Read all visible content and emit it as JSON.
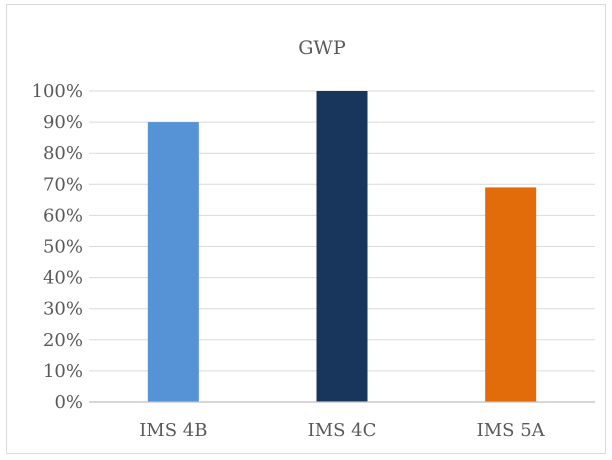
{
  "chart_data": {
    "type": "bar",
    "title": "GWP",
    "categories": [
      "IMS 4B",
      "IMS 4C",
      "IMS 5A"
    ],
    "values": [
      0.9,
      1.0,
      0.69
    ],
    "colors": [
      "#5592d6",
      "#18365c",
      "#e36c0a"
    ],
    "ylim": [
      0,
      1
    ],
    "yticks": [
      "0%",
      "10%",
      "20%",
      "30%",
      "40%",
      "50%",
      "60%",
      "70%",
      "80%",
      "90%",
      "100%"
    ],
    "xlabel": "",
    "ylabel": "",
    "grid": true,
    "legend": "none"
  }
}
